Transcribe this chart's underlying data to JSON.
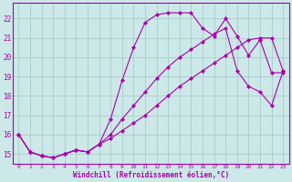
{
  "xlabel": "Windchill (Refroidissement éolien,°C)",
  "x_ticks": [
    0,
    1,
    2,
    3,
    4,
    5,
    6,
    7,
    8,
    9,
    10,
    11,
    12,
    13,
    14,
    15,
    16,
    17,
    18,
    19,
    20,
    21,
    22,
    23
  ],
  "ylim": [
    14.5,
    22.8
  ],
  "yticks": [
    15,
    16,
    17,
    18,
    19,
    20,
    21,
    22
  ],
  "bg_color": "#cce8e8",
  "line_color": "#aa00aa",
  "grid_color": "#aacccc",
  "line1_x": [
    0,
    1,
    2,
    3,
    4,
    5,
    6,
    7,
    8,
    9,
    10,
    11,
    12,
    13,
    14,
    15,
    16,
    17,
    18,
    19,
    20,
    21,
    22,
    23
  ],
  "line1_y": [
    16.0,
    15.1,
    14.9,
    14.8,
    15.0,
    15.2,
    15.1,
    15.5,
    16.8,
    18.8,
    20.5,
    21.8,
    22.2,
    22.3,
    22.3,
    22.3,
    21.5,
    21.1,
    22.0,
    21.1,
    20.1,
    20.9,
    19.2,
    19.2
  ],
  "line2_x": [
    0,
    1,
    2,
    3,
    4,
    5,
    6,
    7,
    8,
    9,
    10,
    11,
    12,
    13,
    14,
    15,
    16,
    17,
    18,
    19,
    20,
    21,
    22,
    23
  ],
  "line2_y": [
    16.0,
    15.1,
    14.9,
    14.8,
    15.0,
    15.2,
    15.1,
    15.5,
    16.0,
    16.8,
    17.5,
    18.2,
    18.9,
    19.5,
    20.0,
    20.4,
    20.8,
    21.2,
    21.5,
    19.3,
    18.5,
    18.2,
    17.5,
    19.3
  ],
  "line3_x": [
    0,
    1,
    2,
    3,
    4,
    5,
    6,
    7,
    8,
    9,
    10,
    11,
    12,
    13,
    14,
    15,
    16,
    17,
    18,
    19,
    20,
    21,
    22,
    23
  ],
  "line3_y": [
    16.0,
    15.1,
    14.9,
    14.8,
    15.0,
    15.2,
    15.1,
    15.5,
    15.8,
    16.2,
    16.6,
    17.0,
    17.5,
    18.0,
    18.5,
    18.9,
    19.3,
    19.7,
    20.1,
    20.5,
    20.9,
    21.0,
    21.0,
    19.3
  ]
}
